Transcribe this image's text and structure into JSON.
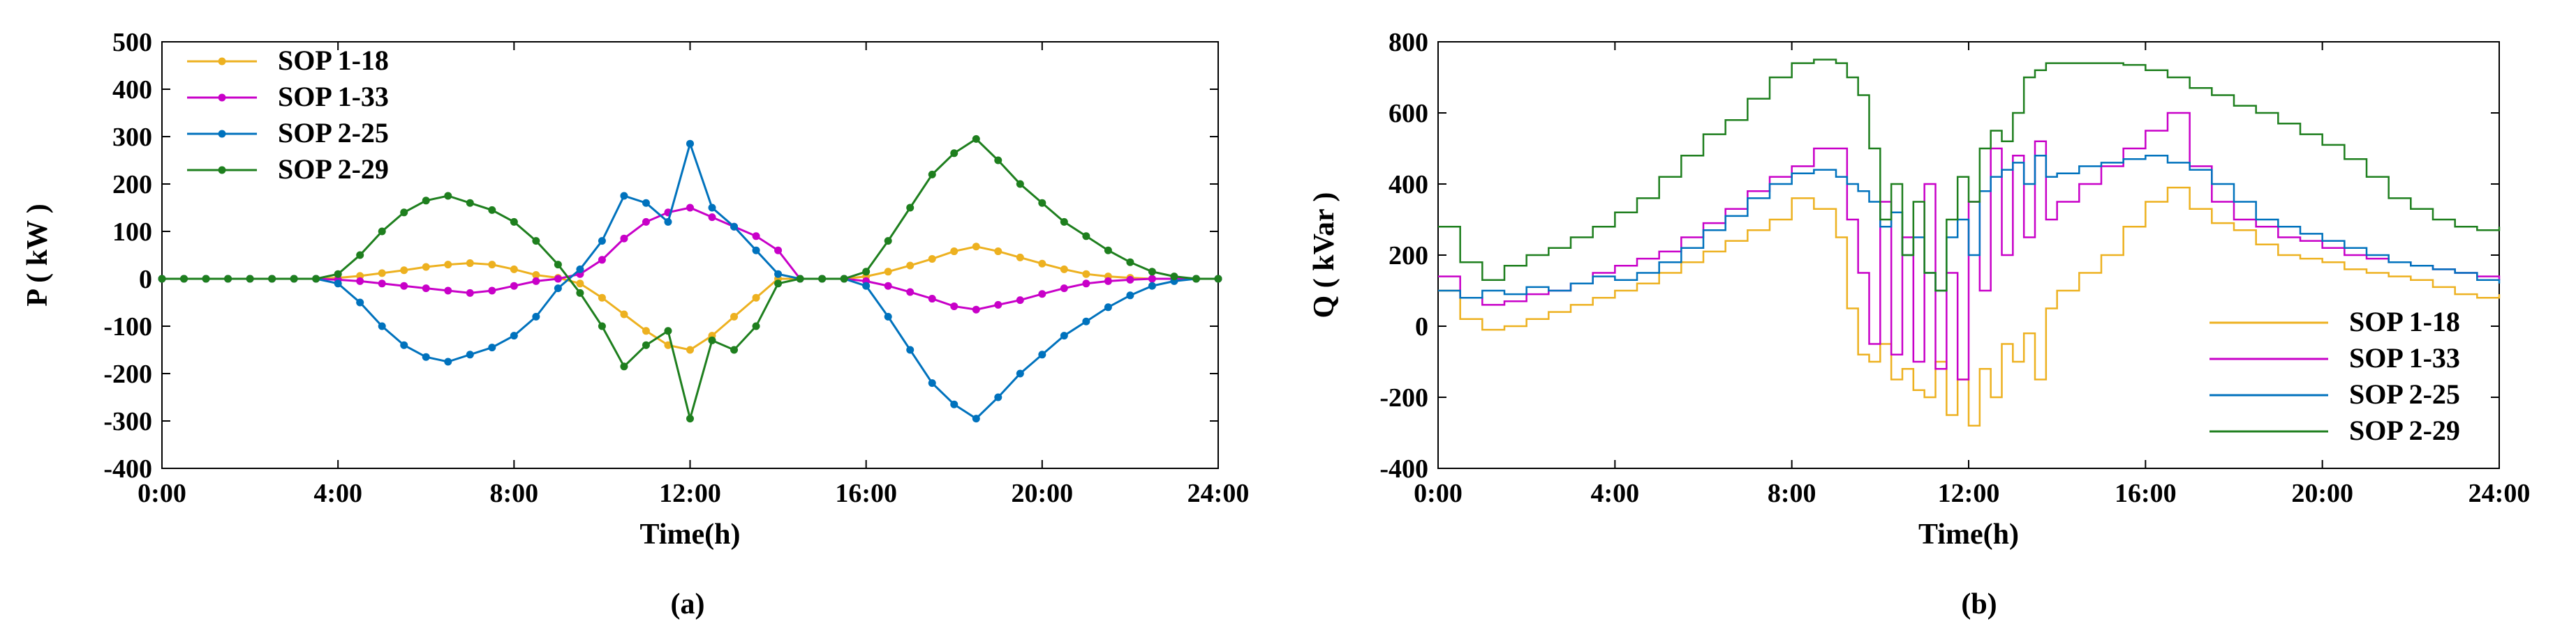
{
  "figure": {
    "panels": [
      "(a)",
      "(b)"
    ]
  },
  "series_colors": {
    "SOP 1-18": "#EDB120",
    "SOP 1-33": "#C800C8",
    "SOP 2-25": "#0072BD",
    "SOP 2-29": "#1E7F1E"
  },
  "chart_data": [
    {
      "type": "line",
      "panel_label": "(a)",
      "xlabel": "Time(h)",
      "ylabel": "P ( kW )",
      "xlim": [
        0,
        24
      ],
      "ylim": [
        -400,
        500
      ],
      "xticks": [
        "0:00",
        "4:00",
        "8:00",
        "12:00",
        "16:00",
        "20:00",
        "24:00"
      ],
      "yticks": [
        -400,
        -300,
        -200,
        -100,
        0,
        100,
        200,
        300,
        400,
        500
      ],
      "markers": true,
      "legend": "top-left",
      "grid": false,
      "x": [
        0,
        0.5,
        1,
        1.5,
        2,
        2.5,
        3,
        3.5,
        4,
        4.5,
        5,
        5.5,
        6,
        6.5,
        7,
        7.5,
        8,
        8.5,
        9,
        9.5,
        10,
        10.5,
        11,
        11.5,
        12,
        12.5,
        13,
        13.5,
        14,
        14.5,
        15,
        15.5,
        16,
        16.5,
        17,
        17.5,
        18,
        18.5,
        19,
        19.5,
        20,
        20.5,
        21,
        21.5,
        22,
        22.5,
        23,
        23.5,
        24
      ],
      "series": [
        {
          "name": "SOP 1-18",
          "values": [
            0,
            0,
            0,
            0,
            0,
            0,
            0,
            0,
            2,
            6,
            12,
            18,
            25,
            30,
            33,
            30,
            20,
            8,
            2,
            -10,
            -40,
            -75,
            -110,
            -140,
            -150,
            -120,
            -80,
            -40,
            0,
            0,
            0,
            0,
            5,
            15,
            28,
            42,
            58,
            68,
            58,
            45,
            32,
            20,
            10,
            5,
            2,
            0,
            0,
            0,
            0
          ]
        },
        {
          "name": "SOP 1-33",
          "values": [
            0,
            0,
            0,
            0,
            0,
            0,
            0,
            0,
            -2,
            -5,
            -10,
            -15,
            -20,
            -25,
            -30,
            -25,
            -15,
            -5,
            0,
            10,
            40,
            85,
            120,
            140,
            150,
            130,
            110,
            90,
            60,
            0,
            0,
            0,
            -5,
            -15,
            -28,
            -42,
            -58,
            -65,
            -55,
            -45,
            -32,
            -20,
            -10,
            -5,
            -2,
            0,
            0,
            0,
            0
          ]
        },
        {
          "name": "SOP 2-25",
          "values": [
            0,
            0,
            0,
            0,
            0,
            0,
            0,
            0,
            -10,
            -50,
            -100,
            -140,
            -165,
            -175,
            -160,
            -145,
            -120,
            -80,
            -20,
            20,
            80,
            175,
            160,
            120,
            285,
            150,
            110,
            60,
            10,
            0,
            0,
            0,
            -15,
            -80,
            -150,
            -220,
            -265,
            -295,
            -250,
            -200,
            -160,
            -120,
            -90,
            -60,
            -35,
            -15,
            -5,
            0,
            0
          ]
        },
        {
          "name": "SOP 2-29",
          "values": [
            0,
            0,
            0,
            0,
            0,
            0,
            0,
            0,
            10,
            50,
            100,
            140,
            165,
            175,
            160,
            145,
            120,
            80,
            30,
            -30,
            -100,
            -185,
            -140,
            -110,
            -295,
            -130,
            -150,
            -100,
            -10,
            0,
            0,
            0,
            15,
            80,
            150,
            220,
            265,
            295,
            250,
            200,
            160,
            120,
            90,
            60,
            35,
            15,
            5,
            0,
            0
          ]
        }
      ]
    },
    {
      "type": "line",
      "panel_label": "(b)",
      "xlabel": "Time(h)",
      "ylabel": "Q ( kVar )",
      "xlim": [
        0,
        24
      ],
      "ylim": [
        -400,
        800
      ],
      "xticks": [
        "0:00",
        "4:00",
        "8:00",
        "12:00",
        "16:00",
        "20:00",
        "24:00"
      ],
      "yticks": [
        -400,
        -200,
        0,
        200,
        400,
        600,
        800
      ],
      "markers": false,
      "legend": "bottom-right",
      "grid": false,
      "x": [
        0,
        0.5,
        1,
        1.5,
        2,
        2.5,
        3,
        3.5,
        4,
        4.5,
        5,
        5.5,
        6,
        6.5,
        7,
        7.5,
        8,
        8.5,
        9,
        9.25,
        9.5,
        9.75,
        10,
        10.25,
        10.5,
        10.75,
        11,
        11.25,
        11.5,
        11.75,
        12,
        12.25,
        12.5,
        12.75,
        13,
        13.25,
        13.5,
        13.75,
        14,
        14.5,
        15,
        15.5,
        16,
        16.5,
        17,
        17.5,
        18,
        18.5,
        19,
        19.5,
        20,
        20.5,
        21,
        21.5,
        22,
        22.5,
        23,
        23.5,
        24
      ],
      "series": [
        {
          "name": "SOP 1-18",
          "values": [
            100,
            20,
            -10,
            0,
            20,
            40,
            60,
            80,
            100,
            120,
            150,
            180,
            210,
            240,
            270,
            300,
            360,
            330,
            250,
            50,
            -80,
            -100,
            -50,
            -150,
            -120,
            -180,
            -200,
            -100,
            -250,
            -150,
            -280,
            -120,
            -200,
            -50,
            -100,
            -20,
            -150,
            50,
            100,
            150,
            200,
            280,
            350,
            390,
            330,
            290,
            270,
            230,
            200,
            190,
            180,
            160,
            150,
            140,
            130,
            110,
            90,
            80,
            90
          ]
        },
        {
          "name": "SOP 1-33",
          "values": [
            140,
            80,
            60,
            70,
            90,
            100,
            120,
            150,
            170,
            190,
            210,
            250,
            290,
            330,
            380,
            420,
            450,
            500,
            500,
            300,
            150,
            -50,
            350,
            -80,
            250,
            -100,
            400,
            -120,
            150,
            -150,
            350,
            100,
            500,
            200,
            480,
            250,
            520,
            300,
            350,
            400,
            450,
            500,
            550,
            600,
            450,
            350,
            300,
            280,
            250,
            240,
            220,
            200,
            190,
            180,
            170,
            160,
            150,
            140,
            130
          ]
        },
        {
          "name": "SOP 2-25",
          "values": [
            100,
            80,
            100,
            90,
            110,
            100,
            120,
            140,
            130,
            150,
            180,
            220,
            270,
            310,
            360,
            400,
            430,
            440,
            420,
            400,
            380,
            350,
            280,
            320,
            200,
            250,
            150,
            100,
            250,
            300,
            200,
            380,
            420,
            440,
            460,
            400,
            480,
            420,
            430,
            450,
            460,
            470,
            480,
            460,
            440,
            400,
            350,
            300,
            280,
            260,
            240,
            220,
            200,
            180,
            170,
            160,
            150,
            130,
            120
          ]
        },
        {
          "name": "SOP 2-29",
          "values": [
            280,
            180,
            130,
            170,
            200,
            220,
            250,
            280,
            320,
            360,
            420,
            480,
            540,
            580,
            640,
            700,
            740,
            750,
            740,
            700,
            650,
            500,
            300,
            400,
            200,
            350,
            150,
            100,
            300,
            420,
            350,
            500,
            550,
            520,
            600,
            700,
            720,
            740,
            740,
            740,
            740,
            735,
            720,
            700,
            670,
            650,
            620,
            600,
            570,
            540,
            510,
            470,
            420,
            360,
            330,
            300,
            280,
            270,
            280
          ]
        }
      ]
    }
  ]
}
